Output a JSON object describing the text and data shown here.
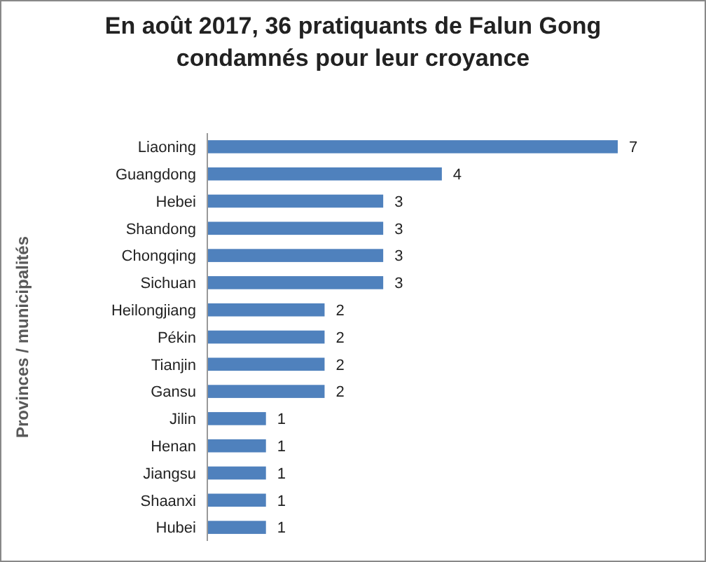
{
  "chart_data": {
    "type": "bar",
    "orientation": "horizontal",
    "title": "En août 2017, 36 pratiquants de Falun Gong condamnés pour leur croyance",
    "ylabel": "Provinces / municipalités",
    "categories": [
      "Liaoning",
      "Guangdong",
      "Hebei",
      "Shandong",
      "Chongqing",
      "Sichuan",
      "Heilongjiang",
      "Pékin",
      "Tianjin",
      "Gansu",
      "Jilin",
      "Henan",
      "Jiangsu",
      "Shaanxi",
      "Hubei"
    ],
    "values": [
      7,
      4,
      3,
      3,
      3,
      3,
      2,
      2,
      2,
      2,
      1,
      1,
      1,
      1,
      1
    ],
    "color": "#4f81bd",
    "data_labels": true
  }
}
